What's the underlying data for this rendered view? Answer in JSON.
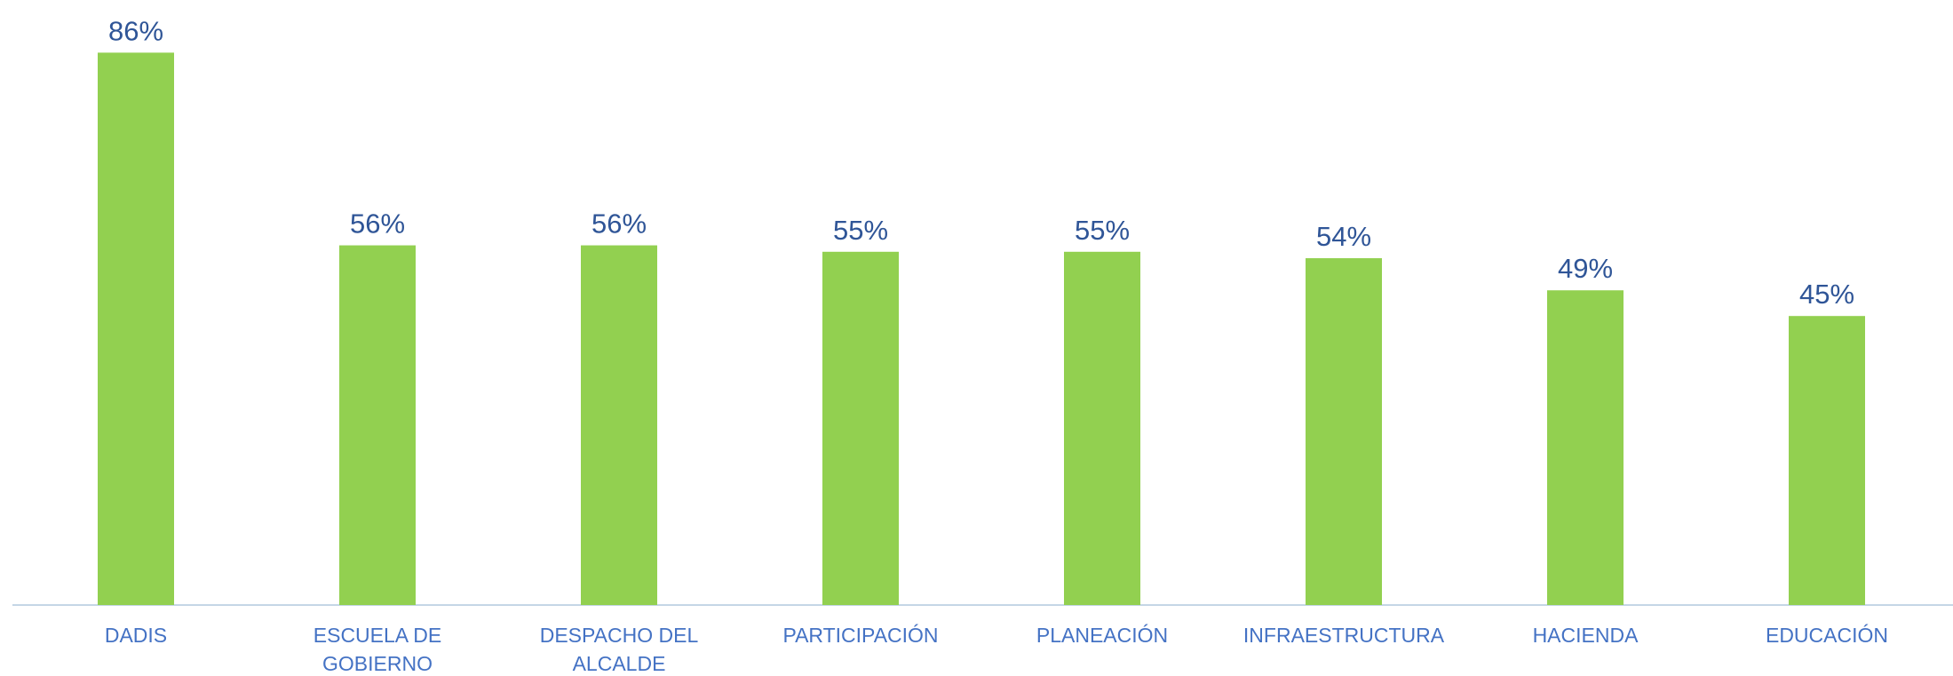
{
  "chart_data": {
    "type": "bar",
    "categories": [
      "DADIS",
      "ESCUELA DE GOBIERNO",
      "DESPACHO DEL ALCALDE",
      "PARTICIPACIÓN",
      "PLANEACIÓN",
      "INFRAESTRUCTURA",
      "HACIENDA",
      "EDUCACIÓN"
    ],
    "values": [
      86,
      56,
      56,
      55,
      55,
      54,
      49,
      45
    ],
    "value_labels": [
      "86%",
      "56%",
      "56%",
      "55%",
      "55%",
      "54%",
      "49%",
      "45%"
    ],
    "color": "#92d050"
  }
}
